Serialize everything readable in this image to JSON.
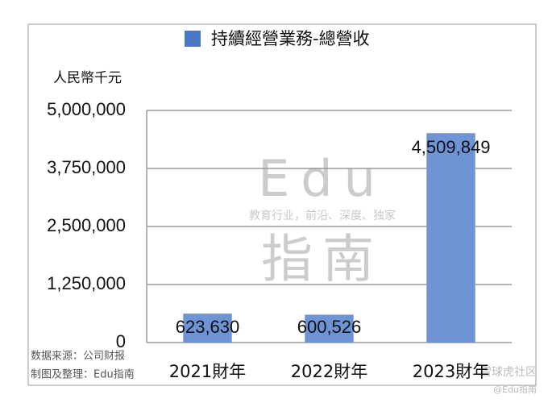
{
  "chart_data": {
    "type": "bar",
    "y_axis_label": "人民幣千元",
    "categories": [
      "2021財年",
      "2022財年",
      "2023財年"
    ],
    "series": [
      {
        "name": "持續經營業務-總營收",
        "color": "#6f94d6",
        "values": [
          623630,
          600526,
          4509849
        ],
        "value_labels": [
          "623,630",
          "600,526",
          "4,509,849"
        ]
      }
    ],
    "ylim": [
      0,
      5000000
    ],
    "yticks": [
      0,
      {
        "value": 1250000,
        "label": "1,250,000"
      },
      {
        "value": 2500000,
        "label": "2,500,000"
      },
      {
        "value": 3750000,
        "label": "3,750,000"
      },
      {
        "value": 5000000,
        "label": "5,000,000"
      }
    ],
    "grid": true,
    "legend": "top",
    "source": [
      "数据来源：公司财报",
      "制图及整理：Edu指南"
    ],
    "watermark": [
      "Edu",
      "教育行业，前沿、深度、独家",
      "指南",
      "雪球虎社区",
      "@Edu指南"
    ]
  }
}
